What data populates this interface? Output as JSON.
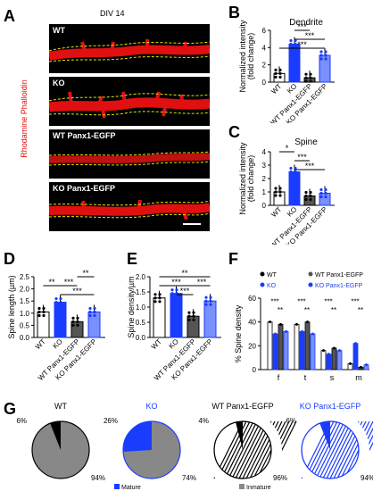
{
  "panels": {
    "A": {
      "letter": "A",
      "title": "DIV 14",
      "side_label": "Rhodamine Phalloidin",
      "images": [
        "WT",
        "KO",
        "WT Panx1-EGFP",
        "KO Panx1-EGFP"
      ]
    },
    "B": {
      "letter": "B",
      "title": "Dendrite",
      "ylabel": "Normalized intensity\n(fold change)",
      "yticks": [
        "0",
        "2",
        "4",
        "6"
      ]
    },
    "C": {
      "letter": "C",
      "title": "Spine",
      "ylabel": "Normalized intensity\n(fold change)",
      "yticks": [
        "0",
        "1",
        "2",
        "3",
        "4"
      ]
    },
    "D": {
      "letter": "D",
      "ylabel": "Spine length (µm)",
      "yticks": [
        "0.0",
        "0.5",
        "1.0",
        "1.5",
        "2.0",
        "2.5"
      ]
    },
    "E": {
      "letter": "E",
      "ylabel": "Spine density/µm",
      "yticks": [
        "0.0",
        "0.5",
        "1.0",
        "1.5",
        "2.0"
      ]
    },
    "F": {
      "letter": "F",
      "ylabel": "% Spine density",
      "yticks": [
        "0",
        "20",
        "40",
        "60"
      ],
      "groups": [
        "f",
        "t",
        "s",
        "m"
      ],
      "legend": [
        "WT",
        "KO",
        "WT Panx1-EGFP",
        "KO Panx1-EGFP"
      ]
    },
    "G": {
      "letter": "G",
      "pies": [
        {
          "title": "WT",
          "mature_pct": "6%",
          "immature_pct": "94%"
        },
        {
          "title": "KO",
          "mature_pct": "26%",
          "immature_pct": "74%"
        },
        {
          "title": "WT Panx1-EGFP",
          "mature_pct": "4%",
          "immature_pct": "96%"
        },
        {
          "title": "KO Panx1-EGFP",
          "mature_pct": "6%",
          "immature_pct": "94%"
        }
      ],
      "legend_mature": "Mature",
      "legend_immature": "Inmature"
    }
  },
  "conditions": [
    "WT",
    "KO",
    "WT Panx1-EGFP",
    "KO Panx1-EGFP"
  ],
  "sig": {
    "one": "*",
    "two": "**",
    "three": "***"
  },
  "colors": {
    "wt": "#ffffff",
    "ko": "#1a3cff",
    "wtpx": "#555555",
    "kopx": "#7a90ff",
    "micro_bg": "#000000",
    "dendrite": "#e01010",
    "outline": "#e6e600"
  },
  "chart_data": [
    {
      "type": "bar",
      "id": "B",
      "title": "Dendrite",
      "categories": [
        "WT",
        "KO",
        "WT Panx1-EGFP",
        "KO Panx1-EGFP"
      ],
      "values": [
        1.0,
        4.4,
        0.5,
        3.1
      ],
      "ylim": [
        0,
        6
      ],
      "ylabel": "Normalized intensity (fold change)"
    },
    {
      "type": "bar",
      "id": "C",
      "title": "Spine",
      "categories": [
        "WT",
        "KO",
        "WT Panx1-EGFP",
        "KO Panx1-EGFP"
      ],
      "values": [
        1.0,
        2.5,
        0.7,
        0.9
      ],
      "ylim": [
        0,
        4
      ],
      "ylabel": "Normalized intensity (fold change)"
    },
    {
      "type": "bar",
      "id": "D",
      "categories": [
        "WT",
        "KO",
        "WT Panx1-EGFP",
        "KO Panx1-EGFP"
      ],
      "values": [
        1.05,
        1.45,
        0.65,
        1.05
      ],
      "ylim": [
        0,
        2.5
      ],
      "ylabel": "Spine length (µm)"
    },
    {
      "type": "bar",
      "id": "E",
      "categories": [
        "WT",
        "KO",
        "WT Panx1-EGFP",
        "KO Panx1-EGFP"
      ],
      "values": [
        1.3,
        1.45,
        0.7,
        1.2
      ],
      "ylim": [
        0,
        2.0
      ],
      "ylabel": "Spine density/µm"
    },
    {
      "type": "bar",
      "id": "F",
      "categories": [
        "f",
        "t",
        "s",
        "m"
      ],
      "ylim": [
        0,
        60
      ],
      "ylabel": "% Spine density",
      "series": [
        {
          "name": "WT",
          "values": [
            40,
            38,
            16,
            5
          ]
        },
        {
          "name": "KO",
          "values": [
            30,
            32,
            13,
            22
          ]
        },
        {
          "name": "WT Panx1-EGFP",
          "values": [
            38,
            40,
            18,
            2
          ]
        },
        {
          "name": "KO Panx1-EGFP",
          "values": [
            32,
            30,
            16,
            4
          ]
        }
      ]
    },
    {
      "type": "pie",
      "id": "G",
      "series": [
        {
          "name": "WT",
          "mature": 6,
          "immature": 94
        },
        {
          "name": "KO",
          "mature": 26,
          "immature": 74
        },
        {
          "name": "WT Panx1-EGFP",
          "mature": 4,
          "immature": 96
        },
        {
          "name": "KO Panx1-EGFP",
          "mature": 6,
          "immature": 94
        }
      ]
    }
  ]
}
